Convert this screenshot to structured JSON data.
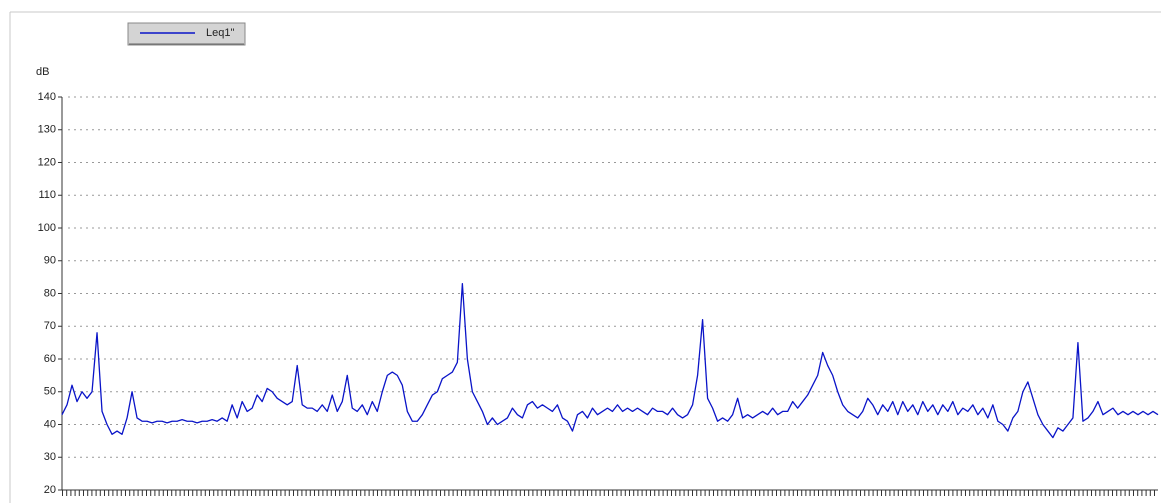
{
  "chart_data": {
    "type": "line",
    "y_label": "dB",
    "ylim": [
      20,
      140
    ],
    "yticks": [
      20,
      30,
      40,
      50,
      60,
      70,
      80,
      90,
      100,
      110,
      120,
      130,
      140
    ],
    "grid": true,
    "legend": "top-left",
    "series": [
      {
        "name": "Leq1\"",
        "color": "#0a14c8",
        "values": [
          43,
          46,
          52,
          47,
          50,
          48,
          50,
          68,
          44,
          40,
          37,
          38,
          37,
          42,
          50,
          42,
          41,
          41,
          40.5,
          41,
          41,
          40.5,
          41,
          41,
          41.5,
          41,
          41,
          40.5,
          41,
          41,
          41.5,
          41,
          42,
          41,
          46,
          42,
          47,
          44,
          45,
          49,
          47,
          51,
          50,
          48,
          47,
          46,
          47,
          58,
          46,
          45,
          45,
          44,
          46,
          44,
          49,
          44,
          47,
          55,
          45,
          44,
          46,
          43,
          47,
          44,
          50,
          55,
          56,
          55,
          52,
          44,
          41,
          41,
          43,
          46,
          49,
          50,
          54,
          55,
          56,
          59,
          83,
          60,
          50,
          47,
          44,
          40,
          42,
          40,
          41,
          42,
          45,
          43,
          42,
          46,
          47,
          45,
          46,
          45,
          44,
          46,
          42,
          41,
          38,
          43,
          44,
          42,
          45,
          43,
          44,
          45,
          44,
          46,
          44,
          45,
          44,
          45,
          44,
          43,
          45,
          44,
          44,
          43,
          45,
          43,
          42,
          43,
          46,
          55,
          72,
          48,
          45,
          41,
          42,
          41,
          43,
          48,
          42,
          43,
          42,
          43,
          44,
          43,
          45,
          43,
          44,
          44,
          47,
          45,
          47,
          49,
          52,
          55,
          62,
          58,
          55,
          50,
          46,
          44,
          43,
          42,
          44,
          48,
          46,
          43,
          46,
          44,
          47,
          43,
          47,
          44,
          46,
          43,
          47,
          44,
          46,
          43,
          46,
          44,
          47,
          43,
          45,
          44,
          46,
          43,
          45,
          42,
          46,
          41,
          40,
          38,
          42,
          44,
          50,
          53,
          48,
          43,
          40,
          38,
          36,
          39,
          38,
          40,
          42,
          65,
          41,
          42,
          44,
          47,
          43,
          44,
          45,
          43,
          44,
          43,
          44,
          43,
          44,
          43,
          44,
          43
        ]
      }
    ]
  }
}
